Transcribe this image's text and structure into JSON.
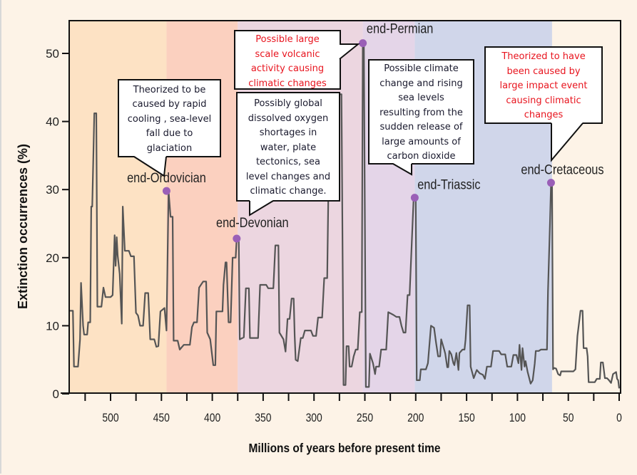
{
  "chart_data": {
    "type": "line",
    "title": "",
    "xlabel": "Millions of years before present time",
    "ylabel": "Extinction occurrences (%)",
    "xlim": [
      541,
      0
    ],
    "ylim": [
      0,
      55
    ],
    "x_ticks": [
      500,
      450,
      400,
      350,
      300,
      250,
      200,
      150,
      100,
      50,
      0
    ],
    "y_ticks": [
      0,
      10,
      20,
      30,
      40,
      50
    ],
    "grid": false,
    "bands": [
      {
        "from": 541,
        "to": 445,
        "color": "#fde2c4"
      },
      {
        "from": 445,
        "to": 375,
        "color": "#fbd0bf"
      },
      {
        "from": 375,
        "to": 252,
        "color": "#ecd6e0"
      },
      {
        "from": 252,
        "to": 201,
        "color": "#e4d5e8"
      },
      {
        "from": 201,
        "to": 66,
        "color": "#d0d6ea"
      }
    ],
    "series": [
      {
        "name": "Extinction occurrences",
        "color": "#555555",
        "points": [
          [
            541,
            12.2
          ],
          [
            537,
            12.2
          ],
          [
            536,
            4
          ],
          [
            532,
            4
          ],
          [
            530,
            8
          ],
          [
            529,
            16.3
          ],
          [
            527,
            10
          ],
          [
            526,
            8.7
          ],
          [
            523,
            8.7
          ],
          [
            522,
            10.5
          ],
          [
            520,
            10.5
          ],
          [
            519,
            27.5
          ],
          [
            518,
            27.5
          ],
          [
            516,
            41.2
          ],
          [
            514,
            41.2
          ],
          [
            513,
            12.8
          ],
          [
            509,
            12.8
          ],
          [
            507,
            15.6
          ],
          [
            505,
            14.2
          ],
          [
            500,
            14.2
          ],
          [
            498,
            14.5
          ],
          [
            496,
            23.3
          ],
          [
            495,
            18.8
          ],
          [
            494,
            23
          ],
          [
            493,
            20.3
          ],
          [
            491,
            17.6
          ],
          [
            489,
            10.3
          ],
          [
            488,
            27.5
          ],
          [
            486,
            21
          ],
          [
            482,
            21
          ],
          [
            480,
            20.2
          ],
          [
            477,
            20.2
          ],
          [
            475,
            11.9
          ],
          [
            473,
            11.5
          ],
          [
            471,
            10
          ],
          [
            468,
            10
          ],
          [
            466,
            14.8
          ],
          [
            463,
            14.8
          ],
          [
            461,
            8
          ],
          [
            457,
            8
          ],
          [
            455,
            6.9
          ],
          [
            453,
            7
          ],
          [
            451,
            12.1
          ],
          [
            447,
            12.6
          ],
          [
            445,
            9.3
          ],
          [
            443,
            29.8
          ],
          [
            441,
            26
          ],
          [
            439,
            26
          ],
          [
            438,
            7.8
          ],
          [
            434,
            7.8
          ],
          [
            432,
            6.5
          ],
          [
            428,
            7.2
          ],
          [
            422,
            7.2
          ],
          [
            420,
            9.8
          ],
          [
            418,
            10.5
          ],
          [
            415,
            10.5
          ],
          [
            413,
            15.6
          ],
          [
            409,
            16.5
          ],
          [
            406,
            16.5
          ],
          [
            405,
            9
          ],
          [
            402,
            8
          ],
          [
            399,
            4.2
          ],
          [
            397,
            4.2
          ],
          [
            396,
            12.1
          ],
          [
            390,
            12.1
          ],
          [
            389,
            16
          ],
          [
            387,
            19.3
          ],
          [
            386,
            19.3
          ],
          [
            384,
            10.5
          ],
          [
            382,
            10.5
          ],
          [
            380,
            20
          ],
          [
            377,
            20
          ],
          [
            376,
            22.8
          ],
          [
            374,
            22.8
          ],
          [
            373,
            8
          ],
          [
            369,
            8.3
          ],
          [
            367,
            15.5
          ],
          [
            364,
            15.5
          ],
          [
            363,
            8.2
          ],
          [
            355,
            8.2
          ],
          [
            353,
            16
          ],
          [
            347,
            16
          ],
          [
            345,
            15.5
          ],
          [
            340,
            15.5
          ],
          [
            338,
            21.8
          ],
          [
            335,
            21.8
          ],
          [
            334,
            9
          ],
          [
            330,
            8
          ],
          [
            328,
            6.2
          ],
          [
            326,
            11
          ],
          [
            324,
            11
          ],
          [
            322,
            14
          ],
          [
            320,
            14
          ],
          [
            319,
            8.5
          ],
          [
            318,
            5
          ],
          [
            316,
            4.8
          ],
          [
            313,
            8.2
          ],
          [
            311,
            8.2
          ],
          [
            309,
            9.3
          ],
          [
            303,
            9.3
          ],
          [
            301,
            8.5
          ],
          [
            298,
            8.5
          ],
          [
            296,
            11.2
          ],
          [
            292,
            11.2
          ],
          [
            290,
            17
          ],
          [
            287,
            17
          ],
          [
            286,
            28.5
          ],
          [
            285,
            35.5
          ],
          [
            282,
            35.5
          ],
          [
            280,
            30
          ],
          [
            278,
            30
          ],
          [
            275,
            44
          ],
          [
            273,
            44
          ],
          [
            271,
            1.3
          ],
          [
            269,
            1.3
          ],
          [
            268,
            7
          ],
          [
            266,
            7
          ],
          [
            265,
            4
          ],
          [
            263,
            4
          ],
          [
            261,
            5.5
          ],
          [
            259,
            6.5
          ],
          [
            257,
            6.5
          ],
          [
            255,
            12
          ],
          [
            253,
            12
          ],
          [
            252,
            51.5
          ],
          [
            251,
            51.5
          ],
          [
            249,
            1
          ],
          [
            246,
            1
          ],
          [
            245,
            5.9
          ],
          [
            242,
            4.5
          ],
          [
            240,
            2.9
          ],
          [
            239,
            4
          ],
          [
            236,
            4
          ],
          [
            234,
            6.5
          ],
          [
            229,
            6.5
          ],
          [
            227,
            12
          ],
          [
            222,
            11.6
          ],
          [
            219,
            11.3
          ],
          [
            216,
            11.3
          ],
          [
            214,
            10
          ],
          [
            212,
            9
          ],
          [
            210,
            9
          ],
          [
            208,
            14.5
          ],
          [
            206,
            14.5
          ],
          [
            204,
            21.8
          ],
          [
            202,
            28.8
          ],
          [
            200,
            28.8
          ],
          [
            199,
            2
          ],
          [
            196,
            2
          ],
          [
            195,
            3.6
          ],
          [
            190,
            3.6
          ],
          [
            188,
            4.5
          ],
          [
            185,
            10
          ],
          [
            182,
            9.7
          ],
          [
            180,
            7.5
          ],
          [
            178,
            5.5
          ],
          [
            176,
            5.5
          ],
          [
            175,
            8
          ],
          [
            172,
            6.5
          ],
          [
            171,
            5.9
          ],
          [
            169,
            3.9
          ],
          [
            168,
            3.9
          ],
          [
            167,
            6.3
          ],
          [
            165,
            5.8
          ],
          [
            163,
            4.5
          ],
          [
            162,
            4.2
          ],
          [
            160,
            6
          ],
          [
            158,
            3.5
          ],
          [
            157,
            6
          ],
          [
            154,
            6.5
          ],
          [
            152,
            6.5
          ],
          [
            151,
            8
          ],
          [
            149,
            13
          ],
          [
            147,
            13
          ],
          [
            146,
            4
          ],
          [
            143,
            2.3
          ],
          [
            140,
            3.5
          ],
          [
            137,
            3
          ],
          [
            134,
            2.8
          ],
          [
            132,
            2.2
          ],
          [
            130,
            4
          ],
          [
            126,
            4
          ],
          [
            124,
            6.3
          ],
          [
            118,
            6.3
          ],
          [
            116,
            5.8
          ],
          [
            112,
            5.8
          ],
          [
            110,
            4
          ],
          [
            106,
            4
          ],
          [
            104,
            5.7
          ],
          [
            101,
            5.7
          ],
          [
            99,
            4.5
          ],
          [
            98,
            7.2
          ],
          [
            96,
            3.5
          ],
          [
            95,
            6.7
          ],
          [
            93,
            4
          ],
          [
            92,
            4.8
          ],
          [
            90,
            3.2
          ],
          [
            87,
            1.5
          ],
          [
            85,
            2
          ],
          [
            83,
            4.4
          ],
          [
            82,
            6.3
          ],
          [
            79,
            6.3
          ],
          [
            77,
            6.5
          ],
          [
            71,
            6.5
          ],
          [
            70,
            15
          ],
          [
            68,
            25
          ],
          [
            67,
            31
          ],
          [
            66,
            31
          ],
          [
            65,
            3.6
          ],
          [
            64,
            3.8
          ],
          [
            62,
            3.7
          ],
          [
            60,
            2.9
          ],
          [
            58,
            2.7
          ],
          [
            57,
            3.3
          ],
          [
            45,
            3.3
          ],
          [
            43,
            3.6
          ],
          [
            41,
            8.5
          ],
          [
            38,
            12.2
          ],
          [
            36,
            12.2
          ],
          [
            35,
            6.7
          ],
          [
            32,
            6.7
          ],
          [
            31,
            5.5
          ],
          [
            30,
            1.7
          ],
          [
            26,
            1.7
          ],
          [
            24,
            1.7
          ],
          [
            22,
            2.2
          ],
          [
            19,
            2.2
          ],
          [
            18,
            4.6
          ],
          [
            16,
            4.6
          ],
          [
            14,
            2.3
          ],
          [
            12,
            2.3
          ],
          [
            10,
            2.0
          ],
          [
            8,
            1.6
          ],
          [
            6,
            2.9
          ],
          [
            3,
            3.2
          ],
          [
            2,
            2.2
          ],
          [
            1,
            2
          ],
          [
            0,
            0.8
          ]
        ]
      }
    ],
    "events": [
      {
        "label": "end-Ordovician",
        "t": 445,
        "v": 29.8
      },
      {
        "label": "end-Devonian",
        "t": 376,
        "v": 22.8
      },
      {
        "label": "end-Permian",
        "t": 252,
        "v": 51.5
      },
      {
        "label": "end-Triassic",
        "t": 201,
        "v": 28.8
      },
      {
        "label": "end-Cretaceous",
        "t": 67,
        "v": 31
      }
    ],
    "marker_color": "#9a5fb7",
    "annotations": [
      {
        "event": "end-Ordovician",
        "color": "#1a1a2e",
        "lines": [
          "Theorized to be",
          "caused by rapid",
          "cooling , sea-level",
          "fall due to",
          "glaciation"
        ]
      },
      {
        "event": "end-Devonian",
        "color": "#1a1a2e",
        "lines": [
          "Possibly global",
          "dissolved oxygen",
          "shortages in",
          "water, plate",
          "tectonics, sea",
          "level changes and",
          "climatic change."
        ]
      },
      {
        "event": "end-Permian",
        "color": "#e8141e",
        "lines": [
          "Possible large",
          "scale volcanic",
          "activity causing",
          "climatic changes"
        ]
      },
      {
        "event": "end-Triassic",
        "color": "#1a1a2e",
        "lines": [
          "Possible climate",
          "change and rising",
          "sea levels",
          "resulting from the",
          "sudden release of",
          "large amounts of",
          "carbon dioxide"
        ]
      },
      {
        "event": "end-Cretaceous",
        "color": "#e8141e",
        "lines": [
          "Theorized to have",
          "been caused by",
          "large impact event",
          "causing climatic",
          "changes"
        ]
      }
    ]
  }
}
